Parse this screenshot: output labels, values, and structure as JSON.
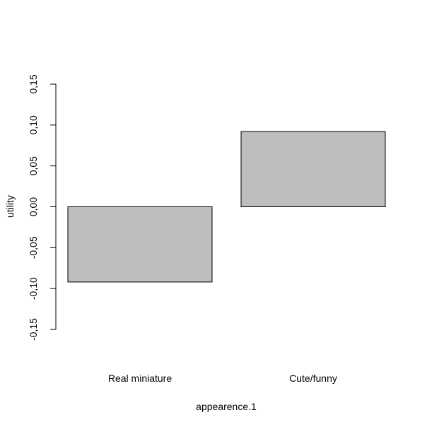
{
  "chart_data": {
    "type": "bar",
    "categories": [
      "Real miniature",
      "Cute/funny"
    ],
    "values": [
      -0.092,
      0.092
    ],
    "title": "",
    "xlabel": "appearence.1",
    "ylabel": "utility",
    "ylim": [
      -0.15,
      0.15
    ],
    "yticks": [
      -0.15,
      -0.1,
      -0.05,
      0.0,
      0.05,
      0.1,
      0.15
    ],
    "ytick_labels": [
      "-0,15",
      "-0,10",
      "-0,05",
      "0,00",
      "0,05",
      "0,10",
      "0,15"
    ],
    "grid": false,
    "legend": "none",
    "colors": {
      "bar_fill": "#bebebe",
      "bar_stroke": "#000000",
      "axis": "#000000",
      "background": "#ffffff"
    }
  }
}
